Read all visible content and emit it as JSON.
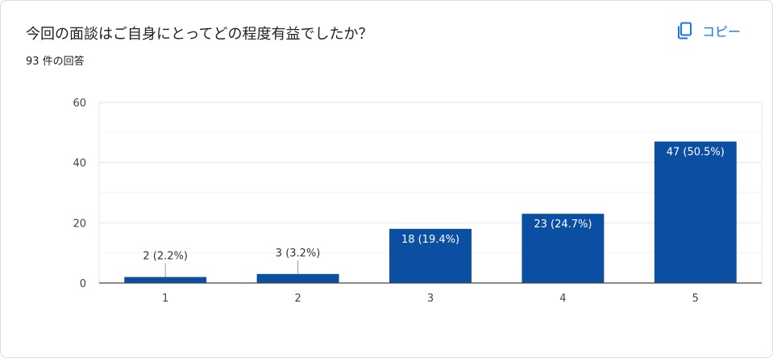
{
  "header": {
    "title": "今回の面談はご自身にとってどの程度有益でしたか？",
    "response_count": "93 件の回答",
    "copy_label": "コピー",
    "copy_icon": "copy-icon",
    "accent_color": "#1a73e8"
  },
  "chart_data": {
    "type": "bar",
    "categories": [
      "1",
      "2",
      "3",
      "4",
      "5"
    ],
    "values": [
      2,
      3,
      18,
      23,
      47
    ],
    "data_labels": [
      "2 (2.2%)",
      "3 (3.2%)",
      "18 (19.4%)",
      "23 (24.7%)",
      "47 (50.5%)"
    ],
    "ylim": [
      0,
      60
    ],
    "yticks": [
      0,
      20,
      40,
      60
    ],
    "grid": true,
    "bar_color": "#0b4fa3",
    "title": "",
    "xlabel": "",
    "ylabel": ""
  }
}
